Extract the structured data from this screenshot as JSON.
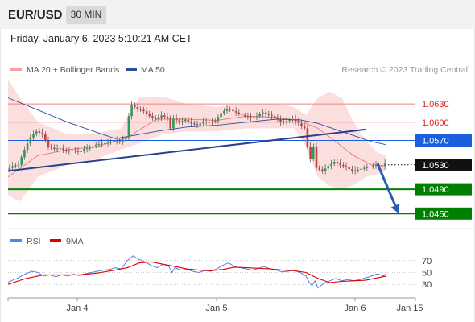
{
  "header": {
    "symbol": "EUR/USD",
    "timeframe": "30 MIN",
    "datetime": "Friday, January 6, 2023 5:10:21 AM CET"
  },
  "legend": {
    "ma20": "MA 20 + Bollinger Bands",
    "ma50": "MA 50",
    "copyright": "Research © 2023 Trading Central",
    "rsi": "RSI",
    "ma9": "9MA"
  },
  "colors": {
    "ma20_band": "#f4a3a3",
    "ma20_line": "#e45555",
    "ma50": "#2c4f9e",
    "resistance": "#f08080",
    "support": "#008000",
    "pivot": "#1a5fe0",
    "last": "#111111",
    "arrow": "#2a5bb5",
    "rsi": "#5b7fe0",
    "rsi_ma": "#e00000",
    "candle_up": "#2e9a5f",
    "candle_down": "#d23c3c"
  },
  "chart_data": [
    {
      "type": "candlestick",
      "instrument": "EUR/USD",
      "interval": "30 MIN",
      "x_tick_labels": [
        "Jan 4",
        "Jan 5",
        "Jan 6",
        "Jan 15"
      ],
      "ylim": [
        1.0428,
        1.0675
      ],
      "levels": [
        {
          "value": "1.0630",
          "kind": "resistance"
        },
        {
          "value": "1.0600",
          "kind": "resistance"
        },
        {
          "value": "1.0570",
          "kind": "pivot"
        },
        {
          "value": "1.0530",
          "kind": "last"
        },
        {
          "value": "1.0490",
          "kind": "support"
        },
        {
          "value": "1.0450",
          "kind": "support"
        }
      ],
      "trendline": {
        "from": [
          0,
          1.052
        ],
        "to": [
          120,
          1.0588
        ]
      },
      "forecast_arrow": {
        "from": [
          124,
          1.0532
        ],
        "to": [
          131,
          1.0451
        ]
      },
      "close_path": [
        [
          0,
          1.0522
        ],
        [
          2,
          1.0528
        ],
        [
          4,
          1.053
        ],
        [
          6,
          1.0555
        ],
        [
          8,
          1.0575
        ],
        [
          10,
          1.0585
        ],
        [
          12,
          1.058
        ],
        [
          14,
          1.056
        ],
        [
          16,
          1.0556
        ],
        [
          18,
          1.0557
        ],
        [
          20,
          1.0552
        ],
        [
          22,
          1.0554
        ],
        [
          24,
          1.0551
        ],
        [
          26,
          1.0556
        ],
        [
          28,
          1.0558
        ],
        [
          30,
          1.0563
        ],
        [
          32,
          1.0565
        ],
        [
          34,
          1.0566
        ],
        [
          36,
          1.057
        ],
        [
          38,
          1.0568
        ],
        [
          40,
          1.0575
        ],
        [
          41,
          1.061
        ],
        [
          42,
          1.0628
        ],
        [
          44,
          1.0622
        ],
        [
          46,
          1.0618
        ],
        [
          48,
          1.061
        ],
        [
          50,
          1.0605
        ],
        [
          52,
          1.0611
        ],
        [
          54,
          1.0607
        ],
        [
          55,
          1.059
        ],
        [
          56,
          1.0606
        ],
        [
          58,
          1.06
        ],
        [
          60,
          1.0604
        ],
        [
          62,
          1.0598
        ],
        [
          64,
          1.0595
        ],
        [
          66,
          1.0601
        ],
        [
          68,
          1.06
        ],
        [
          70,
          1.0602
        ],
        [
          72,
          1.0615
        ],
        [
          74,
          1.0622
        ],
        [
          76,
          1.0618
        ],
        [
          78,
          1.0614
        ],
        [
          80,
          1.061
        ],
        [
          82,
          1.0607
        ],
        [
          84,
          1.061
        ],
        [
          86,
          1.0616
        ],
        [
          88,
          1.0612
        ],
        [
          90,
          1.0608
        ],
        [
          92,
          1.06
        ],
        [
          94,
          1.0602
        ],
        [
          96,
          1.0605
        ],
        [
          98,
          1.0598
        ],
        [
          100,
          1.059
        ],
        [
          101,
          1.056
        ],
        [
          102,
          1.054
        ],
        [
          103,
          1.056
        ],
        [
          104,
          1.0525
        ],
        [
          106,
          1.052
        ],
        [
          108,
          1.0528
        ],
        [
          110,
          1.0535
        ],
        [
          112,
          1.053
        ],
        [
          114,
          1.0526
        ],
        [
          116,
          1.052
        ],
        [
          118,
          1.0522
        ],
        [
          120,
          1.0525
        ],
        [
          122,
          1.0527
        ],
        [
          124,
          1.053
        ],
        [
          126,
          1.0528
        ],
        [
          127,
          1.0532
        ]
      ],
      "ma20_path": [
        [
          0,
          1.051
        ],
        [
          10,
          1.0545
        ],
        [
          20,
          1.0555
        ],
        [
          30,
          1.056
        ],
        [
          40,
          1.0575
        ],
        [
          50,
          1.0605
        ],
        [
          60,
          1.0605
        ],
        [
          70,
          1.0603
        ],
        [
          80,
          1.061
        ],
        [
          90,
          1.0608
        ],
        [
          98,
          1.0602
        ],
        [
          104,
          1.059
        ],
        [
          110,
          1.0568
        ],
        [
          116,
          1.0545
        ],
        [
          122,
          1.053
        ],
        [
          127,
          1.0528
        ]
      ],
      "bollinger_upper": [
        [
          0,
          1.067
        ],
        [
          4,
          1.064
        ],
        [
          10,
          1.06
        ],
        [
          20,
          1.058
        ],
        [
          30,
          1.0582
        ],
        [
          38,
          1.059
        ],
        [
          44,
          1.064
        ],
        [
          52,
          1.0642
        ],
        [
          60,
          1.063
        ],
        [
          70,
          1.0625
        ],
        [
          80,
          1.063
        ],
        [
          90,
          1.063
        ],
        [
          96,
          1.0625
        ],
        [
          100,
          1.0612
        ],
        [
          104,
          1.064
        ],
        [
          108,
          1.065
        ],
        [
          112,
          1.064
        ],
        [
          116,
          1.06
        ],
        [
          120,
          1.057
        ],
        [
          124,
          1.055
        ],
        [
          127,
          1.0545
        ]
      ],
      "bollinger_lower": [
        [
          0,
          1.048
        ],
        [
          4,
          1.047
        ],
        [
          10,
          1.051
        ],
        [
          20,
          1.053
        ],
        [
          30,
          1.054
        ],
        [
          38,
          1.0555
        ],
        [
          44,
          1.0565
        ],
        [
          52,
          1.058
        ],
        [
          60,
          1.0585
        ],
        [
          70,
          1.0585
        ],
        [
          80,
          1.059
        ],
        [
          90,
          1.059
        ],
        [
          96,
          1.059
        ],
        [
          100,
          1.056
        ],
        [
          104,
          1.051
        ],
        [
          108,
          1.0495
        ],
        [
          112,
          1.049
        ],
        [
          116,
          1.0497
        ],
        [
          120,
          1.051
        ],
        [
          124,
          1.0515
        ],
        [
          127,
          1.052
        ]
      ],
      "ma50_path": [
        [
          0,
          1.064
        ],
        [
          10,
          1.062
        ],
        [
          20,
          1.06
        ],
        [
          30,
          1.0583
        ],
        [
          36,
          1.0573
        ],
        [
          42,
          1.0578
        ],
        [
          50,
          1.0585
        ],
        [
          60,
          1.0592
        ],
        [
          70,
          1.0595
        ],
        [
          80,
          1.06
        ],
        [
          90,
          1.0605
        ],
        [
          98,
          1.0604
        ],
        [
          104,
          1.0598
        ],
        [
          110,
          1.0588
        ],
        [
          116,
          1.0578
        ],
        [
          122,
          1.0568
        ],
        [
          127,
          1.0563
        ]
      ]
    },
    {
      "type": "line",
      "name": "RSI",
      "x_tick_labels": [
        "Jan 4",
        "Jan 5",
        "Jan 6",
        "Jan 15"
      ],
      "y_tick_labels": [
        "70",
        "50",
        "30"
      ],
      "reference_levels": [
        70,
        50,
        30
      ],
      "ylim": [
        14,
        86
      ],
      "series": [
        {
          "name": "RSI",
          "points": [
            [
              0,
              34
            ],
            [
              3,
              40
            ],
            [
              6,
              48
            ],
            [
              8,
              52
            ],
            [
              10,
              50
            ],
            [
              12,
              44
            ],
            [
              14,
              46
            ],
            [
              16,
              43
            ],
            [
              18,
              46
            ],
            [
              20,
              44
            ],
            [
              22,
              47
            ],
            [
              24,
              45
            ],
            [
              26,
              48
            ],
            [
              28,
              50
            ],
            [
              30,
              52
            ],
            [
              32,
              54
            ],
            [
              34,
              55
            ],
            [
              36,
              58
            ],
            [
              38,
              56
            ],
            [
              40,
              70
            ],
            [
              42,
              78
            ],
            [
              44,
              72
            ],
            [
              46,
              68
            ],
            [
              48,
              62
            ],
            [
              50,
              58
            ],
            [
              52,
              64
            ],
            [
              54,
              60
            ],
            [
              55,
              50
            ],
            [
              56,
              58
            ],
            [
              58,
              54
            ],
            [
              60,
              55
            ],
            [
              62,
              52
            ],
            [
              64,
              50
            ],
            [
              66,
              53
            ],
            [
              68,
              52
            ],
            [
              70,
              56
            ],
            [
              72,
              62
            ],
            [
              74,
              66
            ],
            [
              76,
              60
            ],
            [
              78,
              58
            ],
            [
              80,
              56
            ],
            [
              82,
              54
            ],
            [
              84,
              57
            ],
            [
              86,
              60
            ],
            [
              88,
              56
            ],
            [
              90,
              54
            ],
            [
              92,
              51
            ],
            [
              94,
              52
            ],
            [
              96,
              54
            ],
            [
              98,
              50
            ],
            [
              100,
              44
            ],
            [
              101,
              34
            ],
            [
              102,
              28
            ],
            [
              103,
              36
            ],
            [
              104,
              24
            ],
            [
              106,
              32
            ],
            [
              108,
              36
            ],
            [
              110,
              40
            ],
            [
              112,
              36
            ],
            [
              114,
              38
            ],
            [
              116,
              36
            ],
            [
              118,
              38
            ],
            [
              120,
              41
            ],
            [
              122,
              44
            ],
            [
              124,
              48
            ],
            [
              126,
              44
            ],
            [
              127,
              48
            ]
          ]
        },
        {
          "name": "9MA",
          "points": [
            [
              0,
              30
            ],
            [
              6,
              40
            ],
            [
              12,
              46
            ],
            [
              18,
              46
            ],
            [
              24,
              46
            ],
            [
              30,
              49
            ],
            [
              36,
              54
            ],
            [
              40,
              58
            ],
            [
              44,
              66
            ],
            [
              48,
              68
            ],
            [
              52,
              64
            ],
            [
              56,
              60
            ],
            [
              60,
              56
            ],
            [
              64,
              54
            ],
            [
              68,
              53
            ],
            [
              72,
              55
            ],
            [
              76,
              59
            ],
            [
              80,
              58
            ],
            [
              84,
              57
            ],
            [
              88,
              56
            ],
            [
              92,
              54
            ],
            [
              96,
              53
            ],
            [
              100,
              50
            ],
            [
              104,
              40
            ],
            [
              108,
              33
            ],
            [
              112,
              35
            ],
            [
              116,
              36
            ],
            [
              120,
              37
            ],
            [
              124,
              41
            ],
            [
              127,
              44
            ]
          ]
        }
      ]
    }
  ]
}
